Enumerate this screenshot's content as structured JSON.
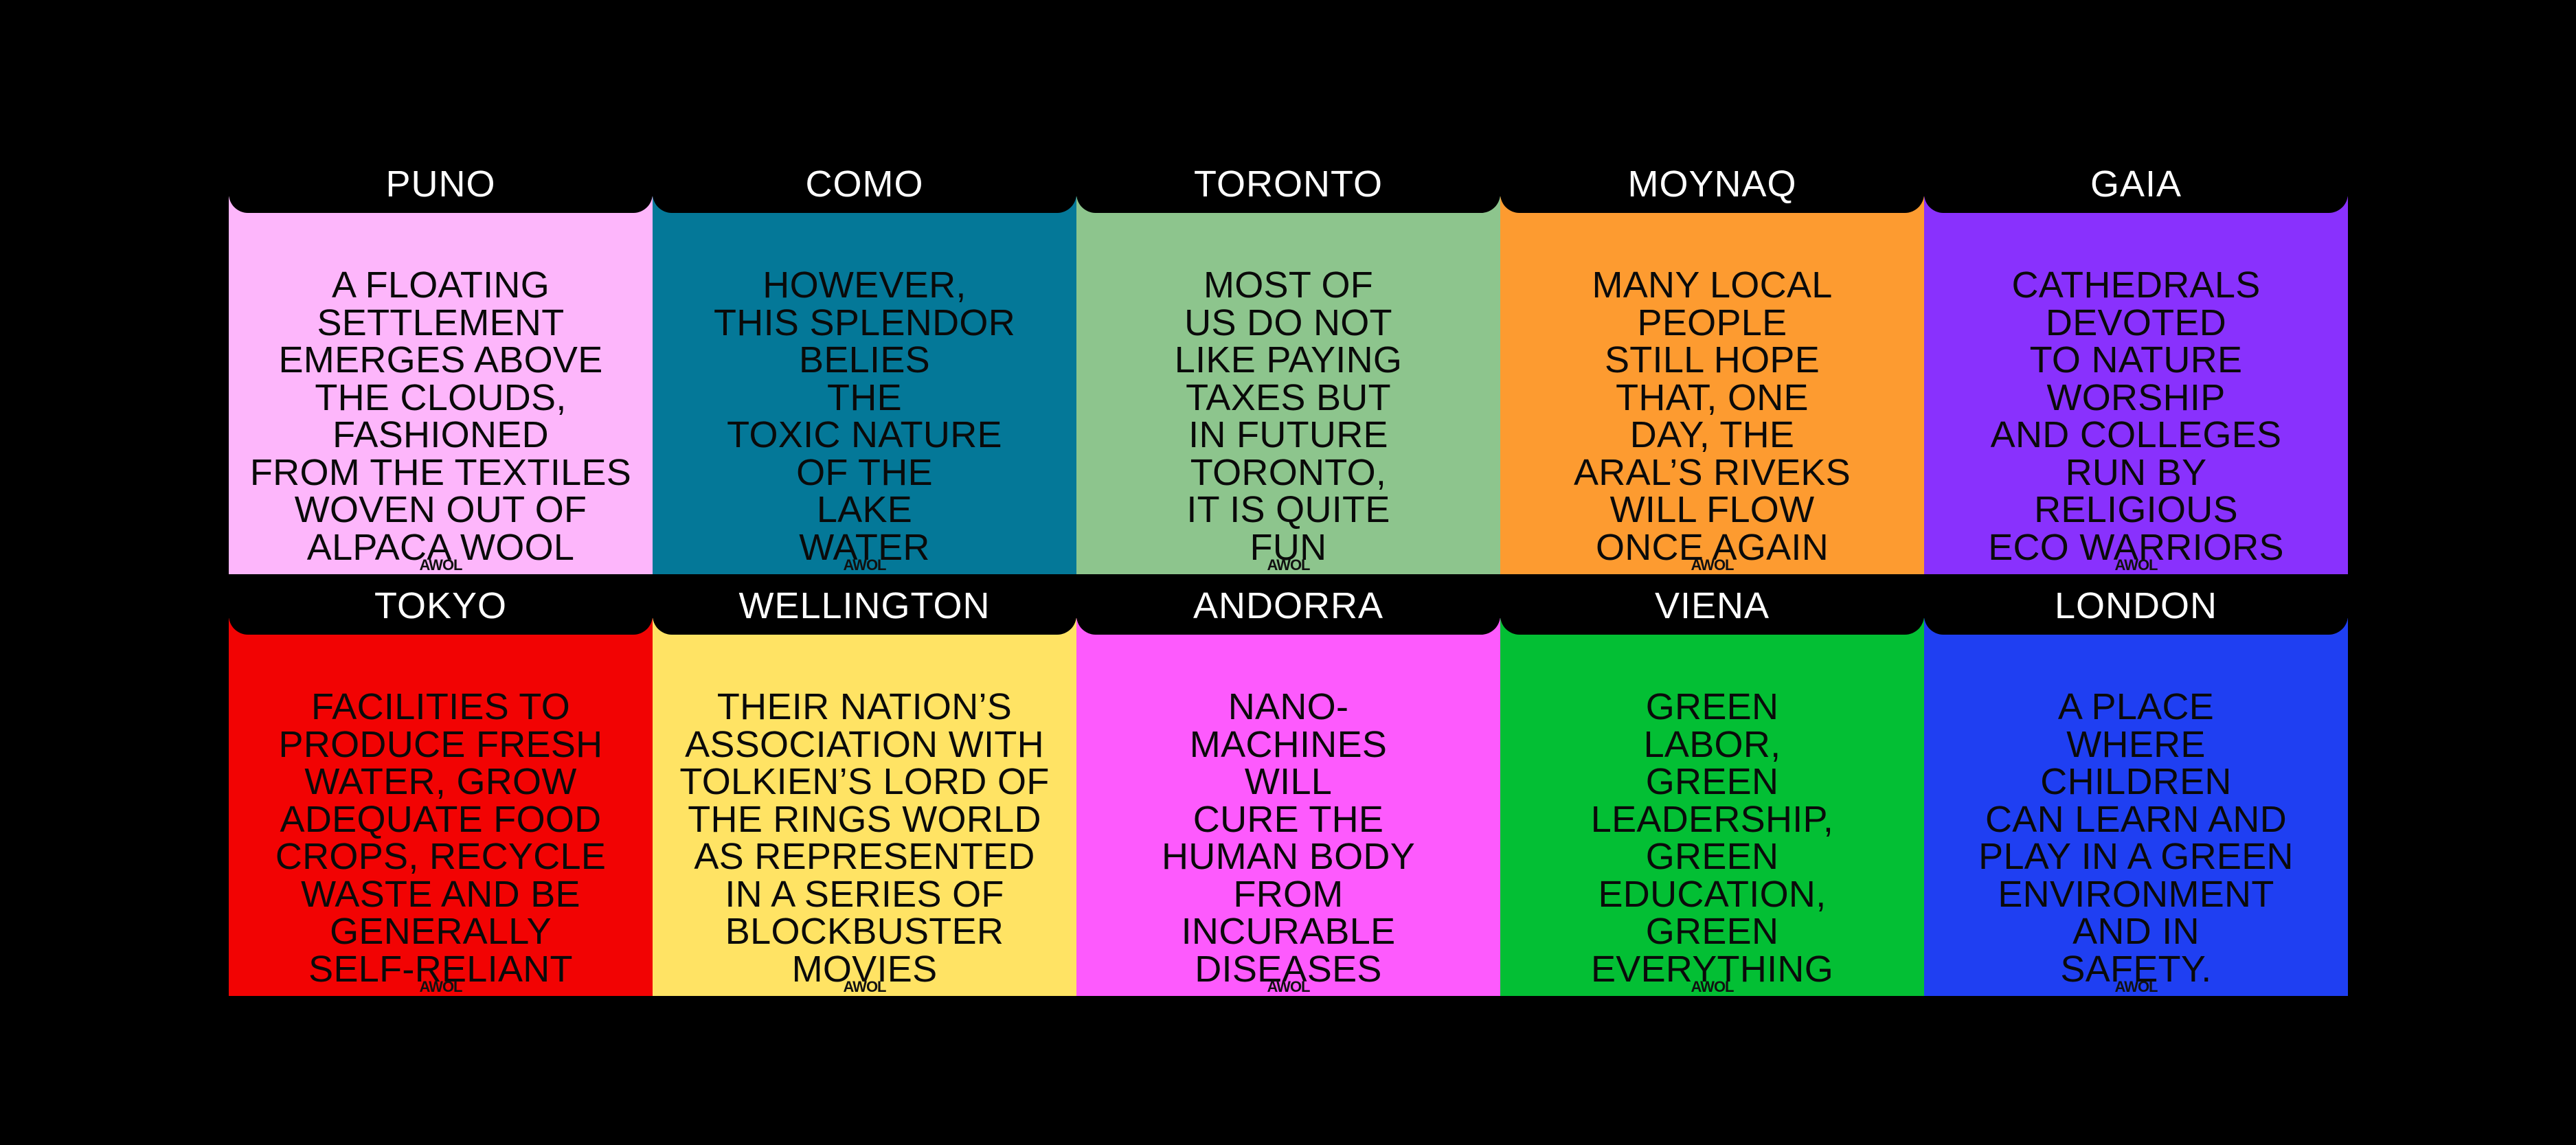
{
  "cards": [
    {
      "city": "PUNO",
      "text": "A FLOATING\nSETTLEMENT\nEMERGES ABOVE\nTHE CLOUDS,\nFASHIONED\nFROM THE TEXTILES\nWOVEN OUT OF\nALPACA WOOL",
      "logo": "AWOL",
      "color": "#fdb6fb"
    },
    {
      "city": "COMO",
      "text": "HOWEVER,\nTHIS SPLENDOR\nBELIES\nTHE\nTOXIC NATURE\nOF THE\nLAKE\nWATER",
      "logo": "AWOL",
      "color": "#047898"
    },
    {
      "city": "TORONTO",
      "text": "MOST OF\nUS DO NOT\nLIKE PAYING\nTAXES BUT\nIN FUTURE\nTORONTO,\nIT IS QUITE\nFUN",
      "logo": "AWOL",
      "color": "#8dc58d"
    },
    {
      "city": "MOYNAQ",
      "text": "MANY LOCAL\nPEOPLE\nSTILL HOPE\nTHAT, ONE\nDAY, THE\nARAL’S RIVEKS\nWILL FLOW\nONCE AGAIN",
      "logo": "AWOL",
      "color": "#fd9b30"
    },
    {
      "city": "GAIA",
      "text": "CATHEDRALS\nDEVOTED\nTO NATURE\nWORSHIP\nAND COLLEGES\nRUN BY\nRELIGIOUS\nECO WARRIORS",
      "logo": "AWOL",
      "color": "#8931fd"
    },
    {
      "city": "TOKYO",
      "text": "FACILITIES TO\nPRODUCE FRESH\nWATER, GROW\nADEQUATE FOOD\nCROPS, RECYCLE\nWASTE AND BE\nGENERALLY\nSELF-RELIANT",
      "logo": "AWOL",
      "color": "#f20303"
    },
    {
      "city": "WELLINGTON",
      "text": "THEIR NATION’S\nASSOCIATION WITH\nTOLKIEN’S LORD OF\nTHE RINGS WORLD\nAS REPRESENTED\nIN A SERIES OF\nBLOCKBUSTER\nMOVIES",
      "logo": "AWOL",
      "color": "#ffe364"
    },
    {
      "city": "ANDORRA",
      "text": "NANO-\nMACHINES\nWILL\nCURE THE\nHUMAN BODY\nFROM\nINCURABLE\nDISEASES",
      "logo": "AWOL",
      "color": "#fd5afd"
    },
    {
      "city": "VIENA",
      "text": "GREEN\nLABOR,\nGREEN\nLEADERSHIP,\nGREEN\nEDUCATION,\nGREEN\nEVERYTHING",
      "logo": "AWOL",
      "color": "#03bf34"
    },
    {
      "city": "LONDON",
      "text": "A PLACE\nWHERE\nCHILDREN\nCAN LEARN AND\nPLAY IN A GREEN\nENVIRONMENT\nAND IN\nSAFETY.",
      "logo": "AWOL",
      "color": "#1f3ff2"
    }
  ]
}
